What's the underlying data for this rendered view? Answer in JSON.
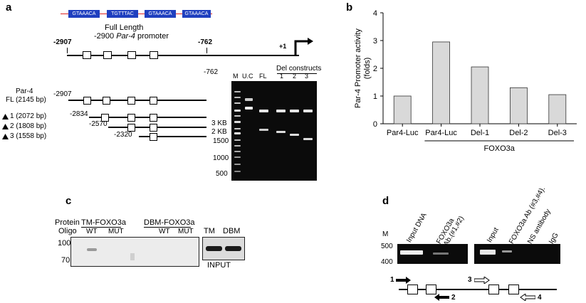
{
  "panel_a": {
    "label": "a",
    "motifs": [
      "GTAAACA",
      "TGTTTAC",
      "GTAAACA",
      "GTAAACA"
    ],
    "title_line1": "Full Length",
    "title_line2_prefix": "-2900 ",
    "title_line2_italic": "Par-4",
    "title_line2_suffix": " promoter",
    "pos_2907": "-2907",
    "pos_762": "-762",
    "pos_plus1": "+1",
    "pos_762_below": "-762",
    "fl_label_1": "Par-4",
    "fl_label_2": "FL (2145 bp)",
    "fl_pos": "-2907",
    "constructs": [
      {
        "name": "1 (2072 bp)",
        "pos": "-2834"
      },
      {
        "name": "2 (1808 bp)",
        "pos": "-2570"
      },
      {
        "name": "3 (1558 bp)",
        "pos": "-2320"
      }
    ],
    "size_labels": [
      "3 KB",
      "2 KB",
      "1500",
      "1000",
      "500"
    ],
    "lane_labels": [
      "M",
      "U.C",
      "FL",
      "1",
      "2",
      "3"
    ],
    "del_constructs": "Del constructs"
  },
  "panel_b": {
    "label": "b"
  },
  "chart_data": {
    "type": "bar",
    "categories": [
      "Par4-Luc",
      "Par4-Luc",
      "Del-1",
      "Del-2",
      "Del-3"
    ],
    "values": [
      1.0,
      2.95,
      2.05,
      1.3,
      1.05
    ],
    "ylabel": "Par-4 Promoter activity (folds)",
    "ylabel_line1": "Par-4 Promoter activity",
    "ylabel_line2": "(folds)",
    "ylim": [
      0,
      4
    ],
    "yticks": [
      "0",
      "1",
      "2",
      "3",
      "4"
    ],
    "group_label": "FOXO3a",
    "bar_color": "#d9d9d9"
  },
  "panel_c": {
    "label": "c",
    "protein": "Protein",
    "oligo": "Oligo",
    "tm_foxo": "TM-FOXO3a",
    "dbm_foxo": "DBM-FOXO3a",
    "wt1": "WT",
    "mut1": "MUT",
    "wt2": "WT",
    "mut2": "MUT",
    "mw_100": "100",
    "mw_70": "70",
    "tm": "TM",
    "dbm": "DBM",
    "input": "INPUT"
  },
  "panel_d": {
    "label": "d",
    "m": "M",
    "mw_500": "500",
    "mw_400": "400",
    "lanes_left": [
      "Input DNA",
      "FOXO3a",
      "Ab.(#1,#2)"
    ],
    "lanes_right": [
      "Input",
      "FOXO3a Ab (#3,#4).",
      "NS antibody",
      "IgG"
    ],
    "primers": [
      "1",
      "2",
      "3",
      "4"
    ]
  }
}
